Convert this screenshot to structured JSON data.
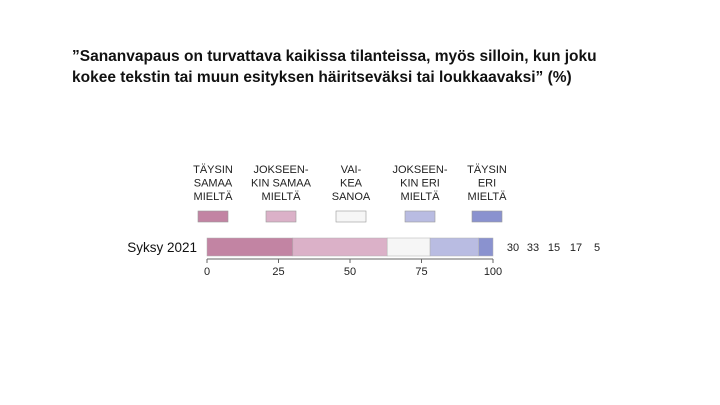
{
  "chart_data": {
    "type": "bar",
    "orientation": "horizontal",
    "stacked": true,
    "title_lines": [
      "”Sananvapaus on turvattava kaikissa tilanteissa, myös silloin, kun joku",
      "kokee tekstin tai muun esityksen häiritseväksi tai loukkaavaksi” (%)"
    ],
    "categories": [
      "Syksy 2021"
    ],
    "series": [
      {
        "name_lines": [
          "TÄYSIN",
          "SAMAA",
          "MIELTÄ"
        ],
        "values": [
          30
        ],
        "color": "#c284a3"
      },
      {
        "name_lines": [
          "JOKSEEN-",
          "KIN SAMAA",
          "MIELTÄ"
        ],
        "values": [
          33
        ],
        "color": "#dbb1c8"
      },
      {
        "name_lines": [
          "VAI-",
          "KEA",
          "SANOA"
        ],
        "values": [
          15
        ],
        "color": "#f6f6f6"
      },
      {
        "name_lines": [
          "JOKSEEN-",
          "KIN ERI",
          "MIELTÄ"
        ],
        "values": [
          17
        ],
        "color": "#b9bce2"
      },
      {
        "name_lines": [
          "TÄYSIN",
          "ERI",
          "MIELTÄ"
        ],
        "values": [
          5
        ],
        "color": "#8a92cf"
      }
    ],
    "value_labels": [
      "30",
      "33",
      "15",
      "17",
      "5"
    ],
    "xlim": [
      0,
      100
    ],
    "xticks": [
      0,
      25,
      50,
      75,
      100
    ],
    "xtick_labels": [
      "0",
      "25",
      "50",
      "75",
      "100"
    ],
    "grid": false,
    "legend_position": "top"
  }
}
